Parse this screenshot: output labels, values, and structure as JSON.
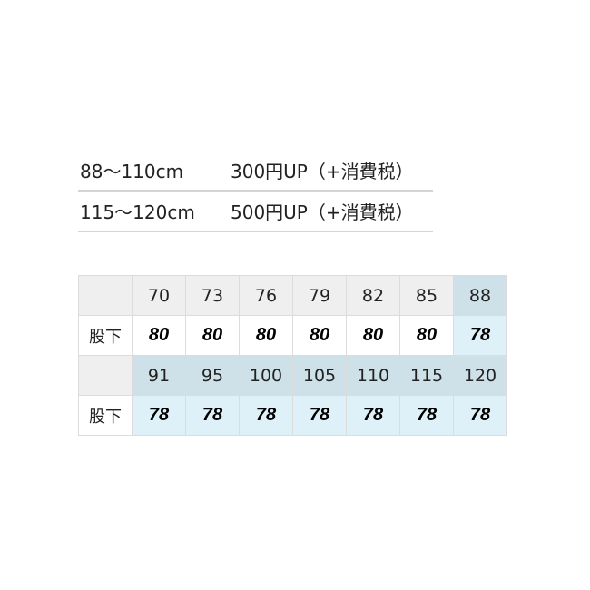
{
  "price_list": [
    {
      "range": "88～110cm",
      "price": "300円UP（+消費税）"
    },
    {
      "range": "115～120cm",
      "price": "500円UP（+消費税）"
    }
  ],
  "size_table": {
    "row_label": "股下",
    "groups": [
      {
        "sizes": [
          "70",
          "73",
          "76",
          "79",
          "82",
          "85",
          "88"
        ],
        "inseam": [
          "80",
          "80",
          "80",
          "80",
          "80",
          "80",
          "78"
        ],
        "highlight_from": 6
      },
      {
        "sizes": [
          "91",
          "95",
          "100",
          "105",
          "110",
          "115",
          "120"
        ],
        "inseam": [
          "78",
          "78",
          "78",
          "78",
          "78",
          "78",
          "78"
        ],
        "highlight_from": 0
      }
    ]
  },
  "colors": {
    "header_gray": "#efefef",
    "header_blue": "#cfe1e8",
    "value_blue": "#dff1f8"
  }
}
